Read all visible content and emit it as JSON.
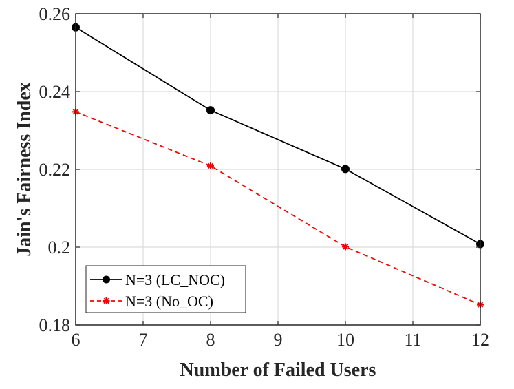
{
  "chart_data": {
    "type": "line",
    "xlabel": "Number of Failed Users",
    "ylabel": "Jain's Fairness Index",
    "xlim": [
      6,
      12
    ],
    "ylim": [
      0.18,
      0.26
    ],
    "xticks": [
      6,
      7,
      8,
      9,
      10,
      11,
      12
    ],
    "yticks": [
      0.18,
      0.2,
      0.22,
      0.24,
      0.26
    ],
    "xtick_labels": [
      "6",
      "7",
      "8",
      "9",
      "10",
      "11",
      "12"
    ],
    "ytick_labels": [
      "0.18",
      "0.2",
      "0.22",
      "0.24",
      "0.26"
    ],
    "grid": true,
    "legend_position": "bottom-left",
    "series": [
      {
        "name": "N=3 (LC_NOC)",
        "x": [
          6,
          8,
          10,
          12
        ],
        "y": [
          0.2565,
          0.2352,
          0.2201,
          0.2008
        ],
        "color": "#000000",
        "line_style": "solid",
        "marker": "circle"
      },
      {
        "name": "N=3 (No_OC)",
        "x": [
          6,
          8,
          10,
          12
        ],
        "y": [
          0.2348,
          0.2209,
          0.2001,
          0.1852
        ],
        "color": "#ff0000",
        "line_style": "dashed",
        "marker": "asterisk"
      }
    ]
  }
}
